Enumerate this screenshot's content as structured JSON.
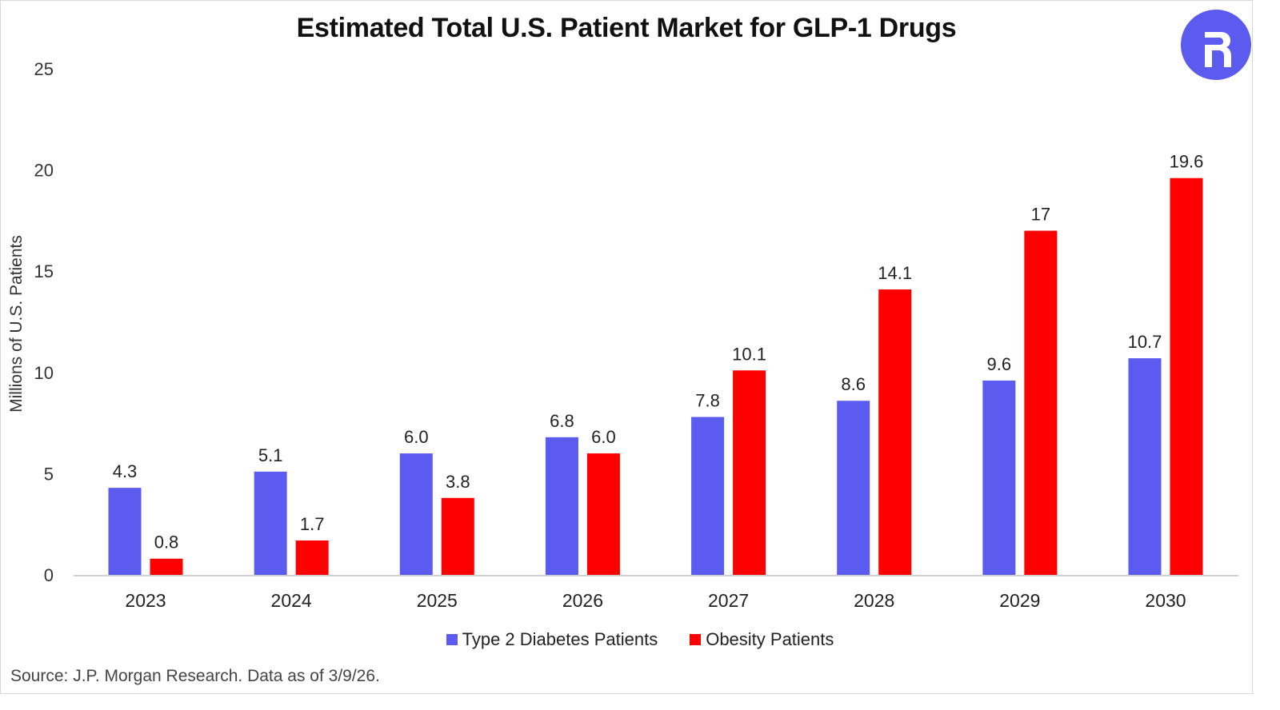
{
  "header": {
    "title": "Estimated Total U.S. Patient Market for GLP-1 Drugs",
    "logo_icon": "brand-logo-r-icon",
    "logo_color": "#5B5BF0"
  },
  "footer": {
    "source": "Source: J.P. Morgan Research. Data as of 3/9/26."
  },
  "chart_data": {
    "type": "bar",
    "title": "Estimated Total U.S. Patient Market for GLP-1 Drugs",
    "xlabel": "",
    "ylabel": "Millions of U.S. Patients",
    "ylim": [
      0,
      25
    ],
    "yticks": [
      0,
      5,
      10,
      15,
      20,
      25
    ],
    "grid": false,
    "legend_position": "bottom-center",
    "categories": [
      "2023",
      "2024",
      "2025",
      "2026",
      "2027",
      "2028",
      "2029",
      "2030"
    ],
    "series": [
      {
        "name": "Type 2 Diabetes Patients",
        "color": "#5B5BF0",
        "values": [
          4.3,
          5.1,
          6.0,
          6.8,
          7.8,
          8.6,
          9.6,
          10.7
        ],
        "labels": [
          "4.3",
          "5.1",
          "6.0",
          "6.8",
          "7.8",
          "8.6",
          "9.6",
          "10.7"
        ]
      },
      {
        "name": "Obesity Patients",
        "color": "#FF0000",
        "values": [
          0.8,
          1.7,
          3.8,
          6.0,
          10.1,
          14.1,
          17,
          19.6
        ],
        "labels": [
          "0.8",
          "1.7",
          "3.8",
          "6.0",
          "10.1",
          "14.1",
          "17",
          "19.6"
        ]
      }
    ],
    "source": "Source: J.P. Morgan Research. Data as of 3/9/26."
  }
}
